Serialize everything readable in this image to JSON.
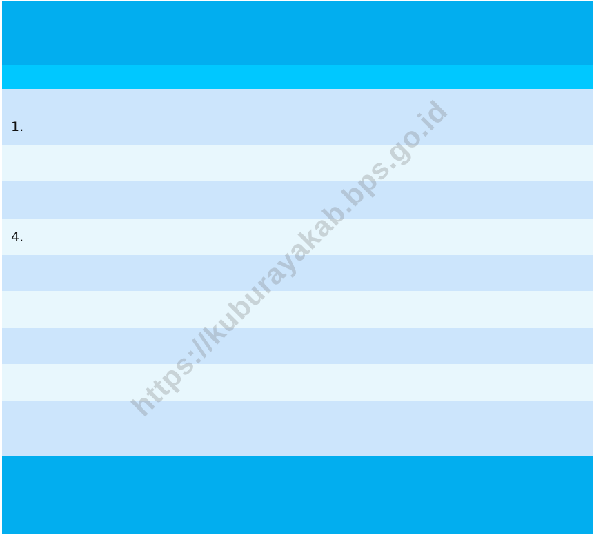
{
  "table": {
    "numbered_rows": [
      "1.",
      "4."
    ]
  },
  "watermark": "https://kuburayakab.bps.go.id"
}
